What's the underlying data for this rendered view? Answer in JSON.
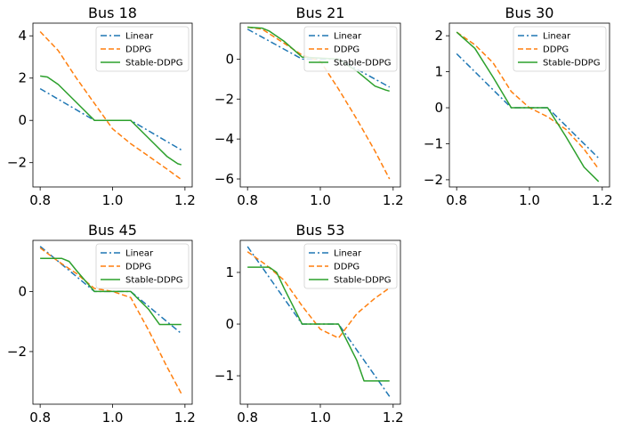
{
  "legend": {
    "entries": [
      {
        "name": "Linear",
        "color": "#1f77b4",
        "dash": "dashdot"
      },
      {
        "name": "DDPG",
        "color": "#ff7f0e",
        "dash": "dashed"
      },
      {
        "name": "Stable-DDPG",
        "color": "#2ca02c",
        "dash": "solid"
      }
    ],
    "placement": "upper-right"
  },
  "chart_data": [
    {
      "type": "line",
      "title": "Bus 18",
      "xlim": [
        0.78,
        1.22
      ],
      "ylim": [
        -3.15,
        4.6
      ],
      "xticks": [
        0.8,
        1.0,
        1.2
      ],
      "xtick_labels": [
        "0.8",
        "1.0",
        "1.2"
      ],
      "yticks": [
        -2,
        0,
        2,
        4
      ],
      "ytick_labels": [
        "−2",
        "0",
        "2",
        "4"
      ],
      "series": [
        {
          "name": "Linear",
          "x": [
            0.8,
            0.95,
            1.05,
            1.19
          ],
          "y": [
            1.5,
            0,
            0,
            -1.4
          ]
        },
        {
          "name": "DDPG",
          "x": [
            0.8,
            0.85,
            0.9,
            0.95,
            1.0,
            1.05,
            1.1,
            1.15,
            1.19
          ],
          "y": [
            4.2,
            3.3,
            2.0,
            0.8,
            -0.4,
            -1.1,
            -1.7,
            -2.3,
            -2.8
          ]
        },
        {
          "name": "Stable-DDPG",
          "x": [
            0.8,
            0.82,
            0.85,
            0.9,
            0.95,
            1.05,
            1.1,
            1.15,
            1.18,
            1.19
          ],
          "y": [
            2.1,
            2.05,
            1.7,
            0.85,
            0,
            0,
            -0.85,
            -1.7,
            -2.05,
            -2.1
          ]
        }
      ]
    },
    {
      "type": "line",
      "title": "Bus 21",
      "xlim": [
        0.78,
        1.22
      ],
      "ylim": [
        -6.4,
        1.8
      ],
      "xticks": [
        0.8,
        1.0,
        1.2
      ],
      "xtick_labels": [
        "0.8",
        "1.0",
        "1.2"
      ],
      "yticks": [
        -6,
        -4,
        -2,
        0
      ],
      "ytick_labels": [
        "−6",
        "−4",
        "−2",
        "0"
      ],
      "series": [
        {
          "name": "Linear",
          "x": [
            0.8,
            0.95,
            1.05,
            1.19
          ],
          "y": [
            1.5,
            0,
            0,
            -1.4
          ]
        },
        {
          "name": "DDPG",
          "x": [
            0.8,
            0.84,
            0.9,
            0.95,
            1.0,
            1.05,
            1.1,
            1.15,
            1.19
          ],
          "y": [
            1.6,
            1.5,
            0.8,
            0.2,
            -0.1,
            -1.5,
            -3.0,
            -4.6,
            -6.0
          ]
        },
        {
          "name": "Stable-DDPG",
          "x": [
            0.8,
            0.84,
            0.86,
            0.9,
            0.95,
            1.05,
            1.1,
            1.15,
            1.18,
            1.19
          ],
          "y": [
            1.6,
            1.55,
            1.4,
            0.9,
            0.1,
            0,
            -0.6,
            -1.35,
            -1.55,
            -1.6
          ]
        }
      ]
    },
    {
      "type": "line",
      "title": "Bus 30",
      "xlim": [
        0.78,
        1.22
      ],
      "ylim": [
        -2.2,
        2.35
      ],
      "xticks": [
        0.8,
        1.0,
        1.2
      ],
      "xtick_labels": [
        "0.8",
        "1.0",
        "1.2"
      ],
      "yticks": [
        -2,
        -1,
        0,
        1,
        2
      ],
      "ytick_labels": [
        "−2",
        "−1",
        "0",
        "1",
        "2"
      ],
      "series": [
        {
          "name": "Linear",
          "x": [
            0.8,
            0.95,
            1.05,
            1.19
          ],
          "y": [
            1.5,
            0,
            0,
            -1.4
          ]
        },
        {
          "name": "DDPG",
          "x": [
            0.8,
            0.85,
            0.9,
            0.95,
            1.0,
            1.05,
            1.1,
            1.15,
            1.19
          ],
          "y": [
            2.1,
            1.75,
            1.25,
            0.45,
            0.0,
            -0.25,
            -0.6,
            -1.15,
            -1.7
          ]
        },
        {
          "name": "Stable-DDPG",
          "x": [
            0.8,
            0.85,
            0.9,
            0.95,
            1.05,
            1.1,
            1.15,
            1.19
          ],
          "y": [
            2.1,
            1.65,
            0.85,
            0,
            0,
            -0.8,
            -1.65,
            -2.05
          ]
        }
      ]
    },
    {
      "type": "line",
      "title": "Bus 45",
      "xlim": [
        0.78,
        1.22
      ],
      "ylim": [
        -3.75,
        1.7
      ],
      "xticks": [
        0.8,
        1.0,
        1.2
      ],
      "xtick_labels": [
        "0.8",
        "1.0",
        "1.2"
      ],
      "yticks": [
        -2,
        0
      ],
      "ytick_labels": [
        "−2",
        "0"
      ],
      "series": [
        {
          "name": "Linear",
          "x": [
            0.8,
            0.95,
            1.05,
            1.19
          ],
          "y": [
            1.5,
            0,
            0,
            -1.4
          ]
        },
        {
          "name": "DDPG",
          "x": [
            0.8,
            0.85,
            0.9,
            0.95,
            1.0,
            1.05,
            1.1,
            1.15,
            1.19
          ],
          "y": [
            1.45,
            1.0,
            0.6,
            0.1,
            0,
            -0.2,
            -1.3,
            -2.5,
            -3.4
          ]
        },
        {
          "name": "Stable-DDPG",
          "x": [
            0.8,
            0.86,
            0.88,
            0.9,
            0.95,
            1.05,
            1.1,
            1.13,
            1.19
          ],
          "y": [
            1.1,
            1.1,
            1.0,
            0.7,
            0,
            0,
            -0.6,
            -1.1,
            -1.1
          ]
        }
      ]
    },
    {
      "type": "line",
      "title": "Bus 53",
      "xlim": [
        0.78,
        1.22
      ],
      "ylim": [
        -1.55,
        1.62
      ],
      "xticks": [
        0.8,
        1.0,
        1.2
      ],
      "xtick_labels": [
        "0.8",
        "1.0",
        "1.2"
      ],
      "yticks": [
        -1,
        0,
        1
      ],
      "ytick_labels": [
        "−1",
        "0",
        "1"
      ],
      "series": [
        {
          "name": "Linear",
          "x": [
            0.8,
            0.95,
            1.05,
            1.19
          ],
          "y": [
            1.5,
            0,
            0,
            -1.4
          ]
        },
        {
          "name": "DDPG",
          "x": [
            0.8,
            0.85,
            0.9,
            0.95,
            1.0,
            1.05,
            1.1,
            1.15,
            1.19
          ],
          "y": [
            1.4,
            1.15,
            0.85,
            0.35,
            -0.1,
            -0.27,
            0.2,
            0.5,
            0.7
          ]
        },
        {
          "name": "Stable-DDPG",
          "x": [
            0.8,
            0.86,
            0.88,
            0.9,
            0.95,
            1.05,
            1.1,
            1.12,
            1.19
          ],
          "y": [
            1.1,
            1.1,
            1.0,
            0.7,
            0,
            0,
            -0.7,
            -1.1,
            -1.1
          ]
        }
      ]
    }
  ]
}
